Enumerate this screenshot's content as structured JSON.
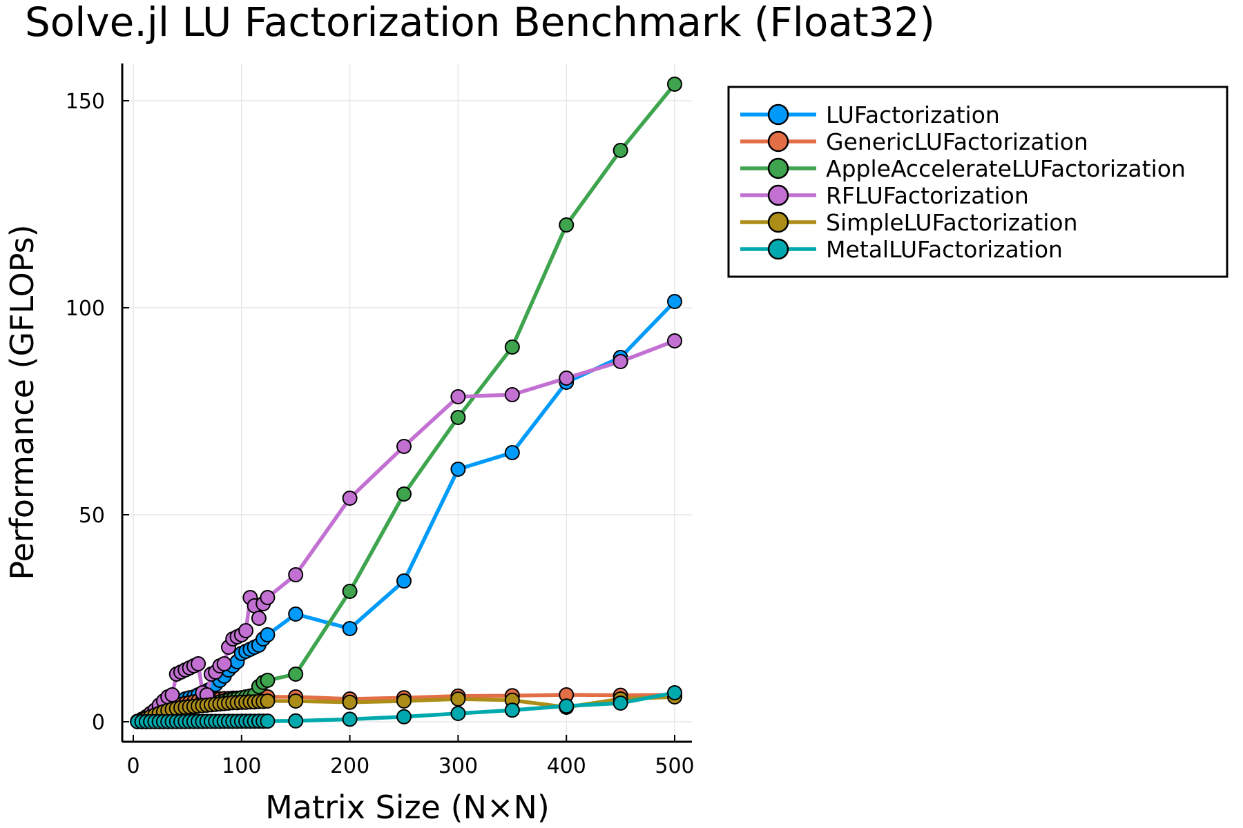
{
  "chart_data": {
    "type": "line",
    "title": "Solve.jl LU Factorization Benchmark (Float32)",
    "xlabel": "Matrix Size (N×N)",
    "ylabel": "Performance (GFLOPs)",
    "xlim": [
      -10,
      515
    ],
    "ylim": [
      -5,
      158
    ],
    "xticks": [
      0,
      100,
      200,
      300,
      400,
      500
    ],
    "xtick_labels": [
      "0",
      "100",
      "200",
      "300",
      "400",
      "500"
    ],
    "yticks": [
      0,
      50,
      100,
      150
    ],
    "ytick_labels": [
      "0",
      "50",
      "100",
      "150"
    ],
    "grid": true,
    "legend_position": "top-right (outside)",
    "x": [
      4,
      8,
      12,
      16,
      20,
      24,
      28,
      32,
      36,
      40,
      44,
      48,
      52,
      56,
      60,
      64,
      68,
      72,
      76,
      80,
      84,
      88,
      92,
      96,
      100,
      104,
      108,
      112,
      116,
      120,
      124,
      150,
      200,
      250,
      300,
      350,
      400,
      450,
      500
    ],
    "series": [
      {
        "name": "LUFactorization",
        "color": "#009AFA",
        "values": [
          0.1,
          0.5,
          1.0,
          1.5,
          2.0,
          2.5,
          3.0,
          3.5,
          4.0,
          4.5,
          5.0,
          5.5,
          5.8,
          6.0,
          6.5,
          7.0,
          7.5,
          8.0,
          9.0,
          10.0,
          11.0,
          12.5,
          13.5,
          14.5,
          16.5,
          17.0,
          17.5,
          18.0,
          18.5,
          20.0,
          21.0,
          26.0,
          22.5,
          34.0,
          61.0,
          65.0,
          82.0,
          88.0,
          101.5
        ]
      },
      {
        "name": "GenericLUFactorization",
        "color": "#E36F47",
        "values": [
          0.1,
          0.6,
          1.0,
          1.5,
          2.0,
          2.5,
          3.0,
          3.3,
          3.6,
          4.0,
          4.2,
          4.4,
          4.6,
          4.8,
          5.0,
          5.1,
          5.2,
          5.3,
          5.4,
          5.5,
          5.6,
          5.6,
          5.7,
          5.7,
          5.8,
          5.8,
          5.9,
          5.9,
          6.0,
          6.0,
          6.0,
          6.0,
          5.5,
          5.8,
          6.2,
          6.3,
          6.5,
          6.4,
          6.5
        ]
      },
      {
        "name": "AppleAccelerateLUFactorization",
        "color": "#3EA44E",
        "values": [
          0.1,
          0.3,
          0.6,
          0.9,
          1.2,
          1.5,
          1.8,
          2.1,
          2.4,
          2.7,
          3.0,
          3.2,
          3.4,
          3.6,
          3.8,
          4.0,
          4.2,
          4.4,
          4.6,
          4.8,
          5.0,
          5.2,
          5.4,
          5.6,
          5.8,
          6.0,
          6.2,
          6.5,
          8.5,
          9.5,
          10.0,
          11.5,
          31.5,
          55.0,
          73.5,
          90.5,
          120.0,
          138.0,
          154.0
        ]
      },
      {
        "name": "RFLUFactorization",
        "color": "#C271D2",
        "values": [
          0.1,
          0.5,
          1.2,
          2.0,
          2.8,
          4.0,
          5.0,
          6.0,
          6.5,
          11.5,
          12.0,
          12.5,
          13.0,
          13.5,
          14.0,
          7.0,
          6.5,
          11.5,
          12.0,
          13.5,
          14.0,
          18.0,
          20.0,
          20.5,
          21.0,
          22.0,
          30.0,
          28.0,
          25.0,
          28.5,
          30.0,
          35.5,
          54.0,
          66.5,
          78.5,
          79.0,
          83.0,
          87.0,
          92.0
        ]
      },
      {
        "name": "SimpleLUFactorization",
        "color": "#AC8D18",
        "values": [
          0.1,
          0.4,
          0.8,
          1.2,
          1.6,
          2.0,
          2.4,
          2.7,
          3.0,
          3.2,
          3.4,
          3.5,
          3.6,
          3.7,
          3.8,
          3.9,
          4.0,
          4.1,
          4.2,
          4.3,
          4.4,
          4.5,
          4.6,
          4.6,
          4.7,
          4.7,
          4.8,
          4.8,
          4.9,
          4.9,
          5.0,
          5.0,
          4.7,
          5.0,
          5.5,
          5.2,
          3.5,
          5.5,
          6.0
        ]
      },
      {
        "name": "MetalLUFactorization",
        "color": "#00A9AD",
        "values": [
          0.01,
          0.01,
          0.01,
          0.02,
          0.02,
          0.02,
          0.03,
          0.03,
          0.04,
          0.04,
          0.05,
          0.05,
          0.06,
          0.06,
          0.07,
          0.07,
          0.08,
          0.08,
          0.09,
          0.09,
          0.1,
          0.1,
          0.11,
          0.11,
          0.12,
          0.12,
          0.13,
          0.13,
          0.14,
          0.14,
          0.15,
          0.2,
          0.6,
          1.2,
          2.0,
          2.8,
          3.8,
          4.5,
          7.0
        ]
      }
    ]
  }
}
